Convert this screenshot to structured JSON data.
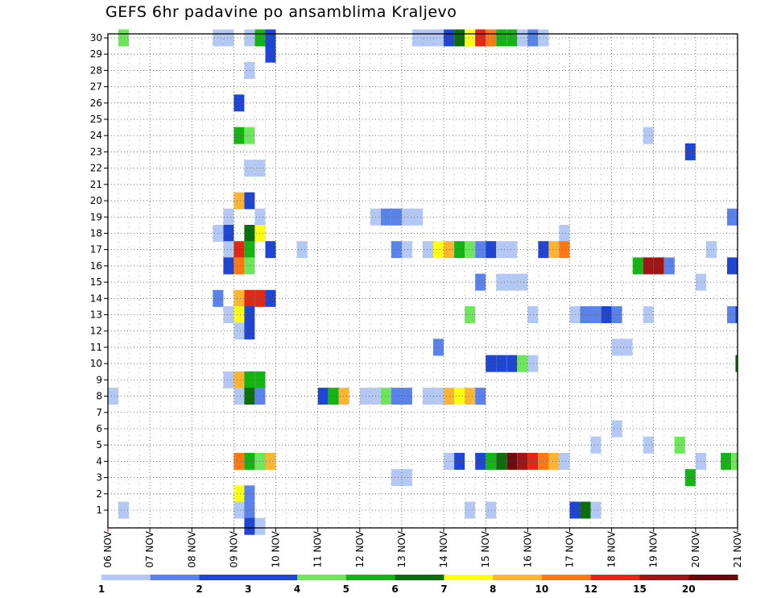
{
  "chart_data": {
    "type": "heatmap",
    "title": "GEFS 6hr padavine po ansamblima Kraljevo",
    "xlabel": "",
    "ylabel": "",
    "x_tick_labels": [
      "06 NOV",
      "07 NOV",
      "08 NOV",
      "09 NOV",
      "10 NOV",
      "11 NOV",
      "12 NOV",
      "13 NOV",
      "14 NOV",
      "15 NOV",
      "16 NOV",
      "17 NOV",
      "18 NOV",
      "19 NOV",
      "20 NOV",
      "21 NOV"
    ],
    "y_ticks": [
      1,
      2,
      3,
      4,
      5,
      6,
      7,
      8,
      9,
      10,
      11,
      12,
      13,
      14,
      15,
      16,
      17,
      18,
      19,
      20,
      21,
      22,
      23,
      24,
      25,
      26,
      27,
      28,
      29,
      30
    ],
    "xlim_days": [
      0,
      15
    ],
    "ylim": [
      0,
      30
    ],
    "grid": true,
    "colorbar": {
      "levels": [
        "1",
        "2",
        "3",
        "4",
        "5",
        "6",
        "7",
        "8",
        "10",
        "12",
        "15",
        "20"
      ],
      "colors": [
        "#b4c8f5",
        "#5a82eb",
        "#1e46d2",
        "#1e46d2",
        "#6ee65a",
        "#14b414",
        "#0a6e0a",
        "#ffff14",
        "#ffb432",
        "#ff7814",
        "#e12814",
        "#a01414",
        "#6e0a0a"
      ]
    },
    "cells": [
      {
        "member": 30,
        "day": 0.25,
        "bin": 4
      },
      {
        "member": 30,
        "day": 2.5,
        "bin": 0
      },
      {
        "member": 30,
        "day": 2.75,
        "bin": 0
      },
      {
        "member": 30,
        "day": 3.25,
        "bin": 0
      },
      {
        "member": 30,
        "day": 3.5,
        "bin": 5
      },
      {
        "member": 30,
        "day": 3.75,
        "bin": 2
      },
      {
        "member": 30,
        "day": 7.25,
        "bin": 0
      },
      {
        "member": 30,
        "day": 7.5,
        "bin": 0
      },
      {
        "member": 30,
        "day": 7.75,
        "bin": 0
      },
      {
        "member": 30,
        "day": 8.0,
        "bin": 2
      },
      {
        "member": 30,
        "day": 8.25,
        "bin": 6
      },
      {
        "member": 30,
        "day": 8.5,
        "bin": 7
      },
      {
        "member": 30,
        "day": 8.75,
        "bin": 10
      },
      {
        "member": 30,
        "day": 9.0,
        "bin": 9
      },
      {
        "member": 30,
        "day": 9.25,
        "bin": 5
      },
      {
        "member": 30,
        "day": 9.5,
        "bin": 5
      },
      {
        "member": 30,
        "day": 9.75,
        "bin": 0
      },
      {
        "member": 30,
        "day": 10.0,
        "bin": 1
      },
      {
        "member": 30,
        "day": 10.25,
        "bin": 0
      },
      {
        "member": 29,
        "day": 3.75,
        "bin": 2
      },
      {
        "member": 28,
        "day": 3.25,
        "bin": 0
      },
      {
        "member": 26,
        "day": 3.0,
        "bin": 2
      },
      {
        "member": 24,
        "day": 3.0,
        "bin": 5
      },
      {
        "member": 24,
        "day": 3.25,
        "bin": 4
      },
      {
        "member": 24,
        "day": 12.75,
        "bin": 0
      },
      {
        "member": 23,
        "day": 13.75,
        "bin": 2
      },
      {
        "member": 22,
        "day": 3.25,
        "bin": 0
      },
      {
        "member": 22,
        "day": 3.5,
        "bin": 0
      },
      {
        "member": 20,
        "day": 3.0,
        "bin": 8
      },
      {
        "member": 20,
        "day": 3.25,
        "bin": 2
      },
      {
        "member": 19,
        "day": 2.75,
        "bin": 0
      },
      {
        "member": 19,
        "day": 3.5,
        "bin": 0
      },
      {
        "member": 19,
        "day": 6.25,
        "bin": 0
      },
      {
        "member": 19,
        "day": 6.5,
        "bin": 1
      },
      {
        "member": 19,
        "day": 6.75,
        "bin": 1
      },
      {
        "member": 19,
        "day": 7.0,
        "bin": 0
      },
      {
        "member": 19,
        "day": 7.25,
        "bin": 0
      },
      {
        "member": 19,
        "day": 14.75,
        "bin": 1
      },
      {
        "member": 18,
        "day": 2.5,
        "bin": 0
      },
      {
        "member": 18,
        "day": 2.75,
        "bin": 2
      },
      {
        "member": 18,
        "day": 3.25,
        "bin": 6
      },
      {
        "member": 18,
        "day": 3.5,
        "bin": 7
      },
      {
        "member": 18,
        "day": 10.75,
        "bin": 0
      },
      {
        "member": 17,
        "day": 2.75,
        "bin": 0
      },
      {
        "member": 17,
        "day": 3.0,
        "bin": 10
      },
      {
        "member": 17,
        "day": 3.25,
        "bin": 5
      },
      {
        "member": 17,
        "day": 3.75,
        "bin": 2
      },
      {
        "member": 17,
        "day": 4.5,
        "bin": 0
      },
      {
        "member": 17,
        "day": 6.75,
        "bin": 1
      },
      {
        "member": 17,
        "day": 7.0,
        "bin": 0
      },
      {
        "member": 17,
        "day": 7.5,
        "bin": 0
      },
      {
        "member": 17,
        "day": 7.75,
        "bin": 7
      },
      {
        "member": 17,
        "day": 8.0,
        "bin": 8
      },
      {
        "member": 17,
        "day": 8.25,
        "bin": 5
      },
      {
        "member": 17,
        "day": 8.5,
        "bin": 4
      },
      {
        "member": 17,
        "day": 8.75,
        "bin": 1
      },
      {
        "member": 17,
        "day": 9.0,
        "bin": 2
      },
      {
        "member": 17,
        "day": 9.25,
        "bin": 0
      },
      {
        "member": 17,
        "day": 9.5,
        "bin": 0
      },
      {
        "member": 17,
        "day": 10.25,
        "bin": 2
      },
      {
        "member": 17,
        "day": 10.5,
        "bin": 8
      },
      {
        "member": 17,
        "day": 10.75,
        "bin": 9
      },
      {
        "member": 17,
        "day": 14.25,
        "bin": 0
      },
      {
        "member": 16,
        "day": 2.75,
        "bin": 2
      },
      {
        "member": 16,
        "day": 3.0,
        "bin": 9
      },
      {
        "member": 16,
        "day": 3.25,
        "bin": 4
      },
      {
        "member": 16,
        "day": 12.5,
        "bin": 5
      },
      {
        "member": 16,
        "day": 12.75,
        "bin": 11
      },
      {
        "member": 16,
        "day": 13.0,
        "bin": 11
      },
      {
        "member": 16,
        "day": 13.25,
        "bin": 1
      },
      {
        "member": 16,
        "day": 14.75,
        "bin": 2
      },
      {
        "member": 15,
        "day": 8.75,
        "bin": 1
      },
      {
        "member": 15,
        "day": 9.25,
        "bin": 0
      },
      {
        "member": 15,
        "day": 9.5,
        "bin": 0
      },
      {
        "member": 15,
        "day": 9.75,
        "bin": 0
      },
      {
        "member": 15,
        "day": 14.0,
        "bin": 0
      },
      {
        "member": 14,
        "day": 2.5,
        "bin": 1
      },
      {
        "member": 14,
        "day": 3.0,
        "bin": 8
      },
      {
        "member": 14,
        "day": 3.25,
        "bin": 10
      },
      {
        "member": 14,
        "day": 3.5,
        "bin": 10
      },
      {
        "member": 14,
        "day": 3.75,
        "bin": 2
      },
      {
        "member": 13,
        "day": 2.75,
        "bin": 0
      },
      {
        "member": 13,
        "day": 3.0,
        "bin": 7
      },
      {
        "member": 13,
        "day": 3.25,
        "bin": 2
      },
      {
        "member": 13,
        "day": 8.5,
        "bin": 4
      },
      {
        "member": 13,
        "day": 10.0,
        "bin": 0
      },
      {
        "member": 13,
        "day": 11.0,
        "bin": 0
      },
      {
        "member": 13,
        "day": 11.25,
        "bin": 1
      },
      {
        "member": 13,
        "day": 11.5,
        "bin": 1
      },
      {
        "member": 13,
        "day": 11.75,
        "bin": 2
      },
      {
        "member": 13,
        "day": 12.0,
        "bin": 1
      },
      {
        "member": 13,
        "day": 12.75,
        "bin": 0
      },
      {
        "member": 13,
        "day": 14.75,
        "bin": 1
      },
      {
        "member": 13,
        "day": 14.95,
        "bin": 2
      },
      {
        "member": 12,
        "day": 3.0,
        "bin": 0
      },
      {
        "member": 12,
        "day": 3.25,
        "bin": 2
      },
      {
        "member": 11,
        "day": 7.75,
        "bin": 1
      },
      {
        "member": 11,
        "day": 12.0,
        "bin": 0
      },
      {
        "member": 11,
        "day": 12.25,
        "bin": 0
      },
      {
        "member": 10,
        "day": 9.0,
        "bin": 2
      },
      {
        "member": 10,
        "day": 9.25,
        "bin": 2
      },
      {
        "member": 10,
        "day": 9.5,
        "bin": 2
      },
      {
        "member": 10,
        "day": 9.75,
        "bin": 4
      },
      {
        "member": 10,
        "day": 10.0,
        "bin": 0
      },
      {
        "member": 10,
        "day": 14.95,
        "bin": 6
      },
      {
        "member": 9,
        "day": 2.75,
        "bin": 0
      },
      {
        "member": 9,
        "day": 3.0,
        "bin": 8
      },
      {
        "member": 9,
        "day": 3.25,
        "bin": 5
      },
      {
        "member": 9,
        "day": 3.5,
        "bin": 5
      },
      {
        "member": 8,
        "day": 0.0,
        "bin": 0
      },
      {
        "member": 8,
        "day": 3.0,
        "bin": 0
      },
      {
        "member": 8,
        "day": 3.25,
        "bin": 6
      },
      {
        "member": 8,
        "day": 3.5,
        "bin": 1
      },
      {
        "member": 8,
        "day": 5.0,
        "bin": 2
      },
      {
        "member": 8,
        "day": 5.25,
        "bin": 5
      },
      {
        "member": 8,
        "day": 5.5,
        "bin": 8
      },
      {
        "member": 8,
        "day": 6.0,
        "bin": 0
      },
      {
        "member": 8,
        "day": 6.25,
        "bin": 0
      },
      {
        "member": 8,
        "day": 6.5,
        "bin": 4
      },
      {
        "member": 8,
        "day": 6.75,
        "bin": 1
      },
      {
        "member": 8,
        "day": 7.0,
        "bin": 1
      },
      {
        "member": 8,
        "day": 7.5,
        "bin": 0
      },
      {
        "member": 8,
        "day": 7.75,
        "bin": 0
      },
      {
        "member": 8,
        "day": 8.0,
        "bin": 8
      },
      {
        "member": 8,
        "day": 8.25,
        "bin": 7
      },
      {
        "member": 8,
        "day": 8.5,
        "bin": 8
      },
      {
        "member": 8,
        "day": 8.75,
        "bin": 1
      },
      {
        "member": 6,
        "day": 12.0,
        "bin": 0
      },
      {
        "member": 5,
        "day": 11.5,
        "bin": 0
      },
      {
        "member": 5,
        "day": 12.75,
        "bin": 0
      },
      {
        "member": 5,
        "day": 13.5,
        "bin": 4
      },
      {
        "member": 4,
        "day": 3.0,
        "bin": 9
      },
      {
        "member": 4,
        "day": 3.25,
        "bin": 5
      },
      {
        "member": 4,
        "day": 3.5,
        "bin": 4
      },
      {
        "member": 4,
        "day": 3.75,
        "bin": 8
      },
      {
        "member": 4,
        "day": 8.0,
        "bin": 0
      },
      {
        "member": 4,
        "day": 8.25,
        "bin": 2
      },
      {
        "member": 4,
        "day": 8.75,
        "bin": 2
      },
      {
        "member": 4,
        "day": 9.0,
        "bin": 5
      },
      {
        "member": 4,
        "day": 9.25,
        "bin": 6
      },
      {
        "member": 4,
        "day": 9.5,
        "bin": 12
      },
      {
        "member": 4,
        "day": 9.75,
        "bin": 11
      },
      {
        "member": 4,
        "day": 10.0,
        "bin": 10
      },
      {
        "member": 4,
        "day": 10.25,
        "bin": 9
      },
      {
        "member": 4,
        "day": 10.5,
        "bin": 8
      },
      {
        "member": 4,
        "day": 10.75,
        "bin": 0
      },
      {
        "member": 4,
        "day": 14.0,
        "bin": 0
      },
      {
        "member": 4,
        "day": 14.6,
        "bin": 5
      },
      {
        "member": 4,
        "day": 14.85,
        "bin": 4
      },
      {
        "member": 3,
        "day": 6.75,
        "bin": 0
      },
      {
        "member": 3,
        "day": 7.0,
        "bin": 0
      },
      {
        "member": 3,
        "day": 13.75,
        "bin": 5
      },
      {
        "member": 2,
        "day": 3.0,
        "bin": 7
      },
      {
        "member": 2,
        "day": 3.25,
        "bin": 1
      },
      {
        "member": 1,
        "day": 0.25,
        "bin": 0
      },
      {
        "member": 1,
        "day": 3.0,
        "bin": 0
      },
      {
        "member": 1,
        "day": 3.25,
        "bin": 1
      },
      {
        "member": 1,
        "day": 8.5,
        "bin": 0
      },
      {
        "member": 1,
        "day": 9.0,
        "bin": 0
      },
      {
        "member": 1,
        "day": 11.0,
        "bin": 2
      },
      {
        "member": 1,
        "day": 11.25,
        "bin": 6
      },
      {
        "member": 1,
        "day": 11.5,
        "bin": 0
      },
      {
        "member": 0,
        "day": 3.25,
        "bin": 2
      },
      {
        "member": 0,
        "day": 3.5,
        "bin": 0
      }
    ]
  }
}
